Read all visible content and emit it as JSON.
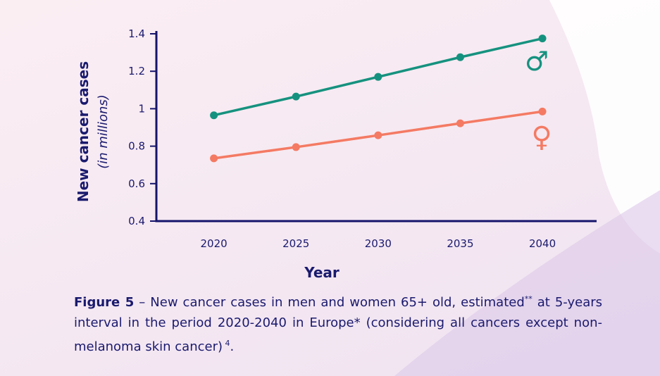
{
  "chart_data": {
    "type": "line",
    "x": [
      2020,
      2025,
      2030,
      2035,
      2040
    ],
    "xlabel": "Year",
    "ylabel": "New cancer cases",
    "ylabel_sub": "(in millions)",
    "ylim": [
      0.4,
      1.4
    ],
    "yticks": [
      "0.4",
      "0.6",
      "0.8",
      "1",
      "1.2",
      "1.4"
    ],
    "xticks": [
      "2020",
      "2025",
      "2030",
      "2035",
      "2040"
    ],
    "grid": false,
    "series": [
      {
        "name": "Men",
        "symbol": "♂",
        "color": "#15927f",
        "values": [
          0.965,
          1.065,
          1.17,
          1.275,
          1.375
        ]
      },
      {
        "name": "Women",
        "symbol": "♀",
        "color": "#f47a63",
        "values": [
          0.735,
          0.795,
          0.858,
          0.922,
          0.985
        ]
      }
    ]
  },
  "caption": {
    "label": "Figure 5",
    "text": " – New cancer cases in men and women 65+ old, estimated",
    "stars": "**",
    "text2": " at 5-years interval in the period 2020-2040 in Europe* (considering all cancers except non-melanoma skin cancer)",
    "ref": " 4",
    "end": "."
  },
  "colors": {
    "axis": "#15146b",
    "text": "#1a1a6e"
  }
}
